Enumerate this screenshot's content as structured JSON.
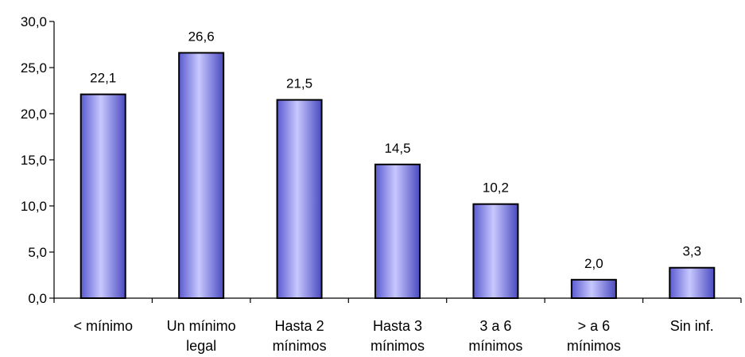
{
  "chart_data": {
    "type": "bar",
    "title": "",
    "xlabel": "",
    "ylabel": "",
    "categories": [
      [
        "< mínimo"
      ],
      [
        "Un mínimo",
        "legal"
      ],
      [
        "Hasta 2",
        "mínimos"
      ],
      [
        "Hasta 3",
        "mínimos"
      ],
      [
        "3 a 6",
        "mínimos"
      ],
      [
        "> a 6",
        "mínimos"
      ],
      [
        "Sin inf."
      ]
    ],
    "values": [
      22.1,
      26.6,
      21.5,
      14.5,
      10.2,
      2.0,
      3.3
    ],
    "data_labels": [
      "22,1",
      "26,6",
      "21,5",
      "14,5",
      "10,2",
      "2,0",
      "3,3"
    ],
    "ylim": [
      0,
      30
    ],
    "yticks": [
      0,
      5,
      10,
      15,
      20,
      25,
      30
    ],
    "ytick_labels": [
      "0,0",
      "5,0",
      "10,0",
      "15,0",
      "20,0",
      "25,0",
      "30,0"
    ],
    "grid": false,
    "legend": "none",
    "bar_color": "#9999ff",
    "bar_edge_color": "#000000"
  }
}
